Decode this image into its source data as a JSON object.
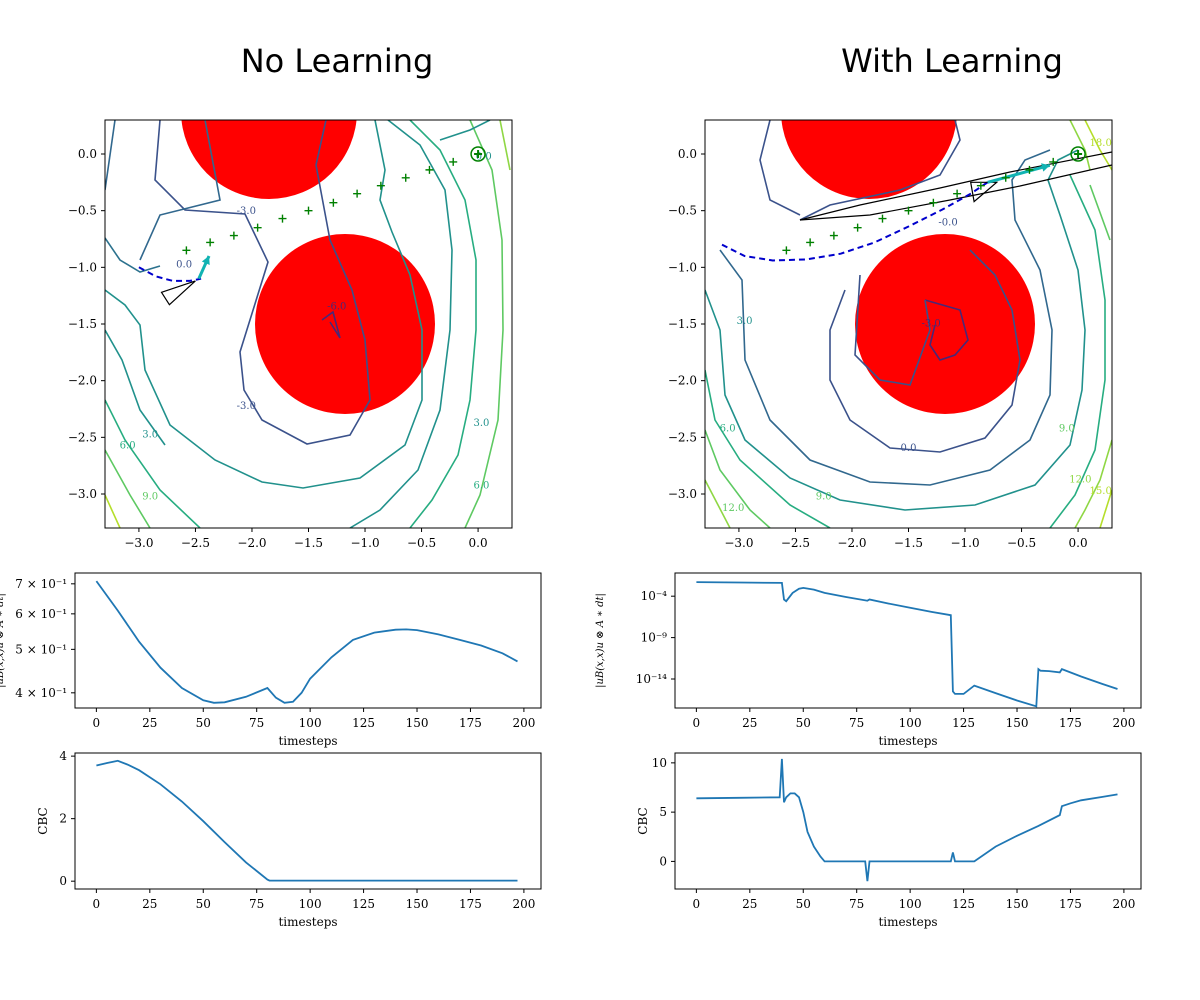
{
  "titles": {
    "left": "No Learning",
    "right": "With Learning"
  },
  "colors": {
    "obstacle": "#ff0000",
    "waypoint": "#008000",
    "trajectory": "#0000cc",
    "arrow": "#11b3b3",
    "line": "#1f77b4"
  },
  "chart_data": [
    {
      "id": "contour-left",
      "type": "contour",
      "title": "No Learning",
      "xlim": [
        -3.3,
        0.3
      ],
      "ylim": [
        -3.3,
        0.3
      ],
      "xticks": [
        -3.0,
        -2.5,
        -2.0,
        -1.5,
        -1.0,
        -0.5,
        0.0
      ],
      "xtick_labels": [
        "−3.0",
        "−2.5",
        "−2.0",
        "−1.5",
        "−1.0",
        "−0.5",
        "0.0"
      ],
      "yticks": [
        0.0,
        -0.5,
        -1.0,
        -1.5,
        -2.0,
        -2.5,
        -3.0
      ],
      "ytick_labels": [
        "0.0",
        "−0.5",
        "−1.0",
        "−1.5",
        "−2.0",
        "−2.5",
        "−3.0"
      ],
      "obstacles": [
        {
          "cx": -1.85,
          "cy": 0.08,
          "r": 0.78
        },
        {
          "cx": -1.15,
          "cy": -1.5,
          "r": 0.79
        }
      ],
      "goal": [
        0.0,
        0.0
      ],
      "waypoints": [
        [
          -2.58,
          -0.85
        ],
        [
          -2.37,
          -0.78
        ],
        [
          -2.16,
          -0.72
        ],
        [
          -1.95,
          -0.65
        ],
        [
          -1.73,
          -0.57
        ],
        [
          -1.5,
          -0.5
        ],
        [
          -1.28,
          -0.43
        ],
        [
          -1.07,
          -0.35
        ],
        [
          -0.86,
          -0.28
        ],
        [
          -0.64,
          -0.21
        ],
        [
          -0.43,
          -0.14
        ],
        [
          -0.22,
          -0.07
        ]
      ],
      "trajectory": [
        [
          -3.0,
          -1.0
        ],
        [
          -2.85,
          -1.08
        ],
        [
          -2.7,
          -1.12
        ],
        [
          -2.55,
          -1.12
        ],
        [
          -2.45,
          -1.1
        ]
      ],
      "robot_triangle": [
        [
          -2.73,
          -1.33
        ],
        [
          -2.8,
          -1.22
        ],
        [
          -2.5,
          -1.12
        ]
      ],
      "arrow": {
        "from": [
          -2.47,
          -1.1
        ],
        "to": [
          -2.38,
          -0.9
        ]
      },
      "contour_labels": [
        {
          "text": "-3.0",
          "x": -2.05,
          "y": -0.53,
          "color": "#3b528b"
        },
        {
          "text": "0.0",
          "x": -2.6,
          "y": -1.0,
          "color": "#3b528b"
        },
        {
          "text": "-6.0",
          "x": -1.25,
          "y": -1.37,
          "color": "#482878"
        },
        {
          "text": "-3.0",
          "x": -2.05,
          "y": -2.25,
          "color": "#3b528b"
        },
        {
          "text": "3.0",
          "x": -2.9,
          "y": -2.5,
          "color": "#21918c"
        },
        {
          "text": "6.0",
          "x": -3.1,
          "y": -2.6,
          "color": "#27ad81"
        },
        {
          "text": "9.0",
          "x": -2.9,
          "y": -3.05,
          "color": "#5ec962"
        },
        {
          "text": "3.0",
          "x": 0.03,
          "y": -2.4,
          "color": "#21918c"
        },
        {
          "text": "6.0",
          "x": 0.03,
          "y": -2.95,
          "color": "#27ad81"
        },
        {
          "text": "0.0",
          "x": 0.05,
          "y": -0.05,
          "color": "#21918c"
        }
      ]
    },
    {
      "id": "contour-right",
      "type": "contour",
      "title": "With Learning",
      "xlim": [
        -3.3,
        0.3
      ],
      "ylim": [
        -3.3,
        0.3
      ],
      "xticks": [
        -3.0,
        -2.5,
        -2.0,
        -1.5,
        -1.0,
        -0.5,
        0.0
      ],
      "xtick_labels": [
        "−3.0",
        "−2.5",
        "−2.0",
        "−1.5",
        "−1.0",
        "−0.5",
        "0.0"
      ],
      "yticks": [
        0.0,
        -0.5,
        -1.0,
        -1.5,
        -2.0,
        -2.5,
        -3.0
      ],
      "ytick_labels": [
        "0.0",
        "−0.5",
        "−1.0",
        "−1.5",
        "−2.0",
        "−2.5",
        "−3.0"
      ],
      "obstacles": [
        {
          "cx": -1.85,
          "cy": 0.08,
          "r": 0.78
        },
        {
          "cx": -1.15,
          "cy": -1.5,
          "r": 0.79
        }
      ],
      "goal": [
        0.0,
        0.0
      ],
      "waypoints": [
        [
          -2.58,
          -0.85
        ],
        [
          -2.37,
          -0.78
        ],
        [
          -2.16,
          -0.72
        ],
        [
          -1.95,
          -0.65
        ],
        [
          -1.73,
          -0.57
        ],
        [
          -1.5,
          -0.5
        ],
        [
          -1.28,
          -0.43
        ],
        [
          -1.07,
          -0.35
        ],
        [
          -0.86,
          -0.28
        ],
        [
          -0.64,
          -0.21
        ],
        [
          -0.43,
          -0.14
        ],
        [
          -0.22,
          -0.07
        ]
      ],
      "trajectory": [
        [
          -3.15,
          -0.8
        ],
        [
          -2.95,
          -0.9
        ],
        [
          -2.7,
          -0.94
        ],
        [
          -2.4,
          -0.93
        ],
        [
          -2.1,
          -0.88
        ],
        [
          -1.8,
          -0.78
        ],
        [
          -1.5,
          -0.64
        ],
        [
          -1.2,
          -0.49
        ],
        [
          -0.95,
          -0.35
        ],
        [
          -0.8,
          -0.25
        ]
      ],
      "robot_triangle": [
        [
          -0.92,
          -0.42
        ],
        [
          -0.95,
          -0.25
        ],
        [
          -0.72,
          -0.25
        ]
      ],
      "arrow": {
        "from": [
          -0.8,
          -0.25
        ],
        "to": [
          -0.25,
          -0.1
        ]
      },
      "contour_labels": [
        {
          "text": "-0.0",
          "x": -1.15,
          "y": -0.63,
          "color": "#3b528b"
        },
        {
          "text": "0.0",
          "x": -1.5,
          "y": -2.62,
          "color": "#3b528b"
        },
        {
          "text": "-3.0",
          "x": -1.3,
          "y": -1.52,
          "color": "#482878"
        },
        {
          "text": "3.0",
          "x": -2.95,
          "y": -1.5,
          "color": "#21918c"
        },
        {
          "text": "6.0",
          "x": -3.1,
          "y": -2.45,
          "color": "#27ad81"
        },
        {
          "text": "9.0",
          "x": -2.25,
          "y": -3.05,
          "color": "#5ec962"
        },
        {
          "text": "12.0",
          "x": -3.05,
          "y": -3.15,
          "color": "#5ec962"
        },
        {
          "text": "9.0",
          "x": -0.1,
          "y": -2.45,
          "color": "#5ec962"
        },
        {
          "text": "12.0",
          "x": 0.02,
          "y": -2.9,
          "color": "#8fd744"
        },
        {
          "text": "15.0",
          "x": 0.2,
          "y": -3.0,
          "color": "#b5de2b"
        },
        {
          "text": "18.0",
          "x": 0.2,
          "y": 0.07,
          "color": "#b5de2b"
        }
      ]
    },
    {
      "id": "loss-left",
      "type": "line",
      "yscale": "log",
      "xlabel": "timesteps",
      "ylabel": "|uB(x,x)u ⊗ A ∗ dt|",
      "xlim": [
        -10,
        208
      ],
      "xticks": [
        0,
        25,
        50,
        75,
        100,
        125,
        150,
        175,
        200
      ],
      "ylim": [
        0.37,
        0.74
      ],
      "yticks": [
        0.4,
        0.5,
        0.6,
        0.7
      ],
      "ytick_labels": [
        "4 × 10⁻¹",
        "5 × 10⁻¹",
        "6 × 10⁻¹",
        "7 × 10⁻¹"
      ],
      "x": [
        0,
        10,
        20,
        30,
        40,
        50,
        55,
        60,
        70,
        80,
        84,
        88,
        92,
        96,
        100,
        110,
        120,
        130,
        140,
        145,
        150,
        160,
        170,
        180,
        190,
        197
      ],
      "y": [
        0.71,
        0.61,
        0.52,
        0.455,
        0.41,
        0.385,
        0.38,
        0.381,
        0.392,
        0.41,
        0.39,
        0.38,
        0.382,
        0.4,
        0.43,
        0.48,
        0.525,
        0.545,
        0.553,
        0.554,
        0.552,
        0.54,
        0.525,
        0.51,
        0.49,
        0.47
      ]
    },
    {
      "id": "loss-right",
      "type": "line",
      "yscale": "log",
      "xlabel": "timesteps",
      "ylabel": "|uB(x,x)u ⊗ A ∗ dt|",
      "xlim": [
        -10,
        208
      ],
      "xticks": [
        0,
        25,
        50,
        75,
        100,
        125,
        150,
        175,
        200
      ],
      "ylim": [
        -17.5,
        -1.2
      ],
      "yticks": [
        -4,
        -9,
        -14
      ],
      "ytick_labels": [
        "10⁻⁴",
        "10⁻⁹",
        "10⁻¹⁴"
      ],
      "x": [
        0,
        20,
        40,
        41,
        42,
        45,
        48,
        50,
        55,
        60,
        70,
        80,
        81,
        90,
        100,
        110,
        119,
        120,
        121,
        125,
        130,
        140,
        150,
        159,
        160,
        161,
        165,
        170,
        171,
        180,
        190,
        197
      ],
      "y": [
        -2.3,
        -2.35,
        -2.4,
        -4.4,
        -4.6,
        -3.6,
        -3.1,
        -3.0,
        -3.2,
        -3.6,
        -4.1,
        -4.55,
        -4.4,
        -4.9,
        -5.4,
        -5.9,
        -6.3,
        -15.5,
        -15.8,
        -15.8,
        -14.8,
        -15.7,
        -16.6,
        -17.3,
        -12.8,
        -13.0,
        -13.05,
        -13.2,
        -12.8,
        -13.7,
        -14.6,
        -15.2
      ]
    },
    {
      "id": "cbc-left",
      "type": "line",
      "xlabel": "timesteps",
      "ylabel": "CBC",
      "xlim": [
        -10,
        208
      ],
      "xticks": [
        0,
        25,
        50,
        75,
        100,
        125,
        150,
        175,
        200
      ],
      "ylim": [
        -0.25,
        4.1
      ],
      "yticks": [
        0,
        2,
        4
      ],
      "ytick_labels": [
        "0",
        "2",
        "4"
      ],
      "x": [
        0,
        5,
        10,
        15,
        20,
        30,
        40,
        50,
        60,
        70,
        80,
        81,
        100,
        150,
        197
      ],
      "y": [
        3.7,
        3.78,
        3.85,
        3.72,
        3.55,
        3.1,
        2.55,
        1.92,
        1.25,
        0.6,
        0.05,
        0.02,
        0.02,
        0.02,
        0.02
      ]
    },
    {
      "id": "cbc-right",
      "type": "line",
      "xlabel": "timesteps",
      "ylabel": "CBC",
      "xlim": [
        -10,
        208
      ],
      "xticks": [
        0,
        25,
        50,
        75,
        100,
        125,
        150,
        175,
        200
      ],
      "ylim": [
        -2.8,
        11.0
      ],
      "yticks": [
        0,
        5,
        10
      ],
      "ytick_labels": [
        "0",
        "5",
        "10"
      ],
      "x": [
        0,
        20,
        39,
        40,
        41,
        42,
        44,
        46,
        48,
        50,
        52,
        55,
        58,
        60,
        70,
        79,
        80,
        81,
        90,
        100,
        110,
        119,
        120,
        121,
        130,
        140,
        150,
        160,
        170,
        171,
        175,
        180,
        190,
        197
      ],
      "y": [
        6.4,
        6.45,
        6.5,
        10.4,
        6.0,
        6.5,
        6.9,
        6.9,
        6.5,
        5.0,
        3.0,
        1.5,
        0.5,
        0.0,
        0.0,
        0.0,
        -2.0,
        0.0,
        0.0,
        0.0,
        0.0,
        0.0,
        0.9,
        0.0,
        0.0,
        1.5,
        2.6,
        3.6,
        4.7,
        5.6,
        5.9,
        6.2,
        6.55,
        6.8
      ]
    }
  ]
}
